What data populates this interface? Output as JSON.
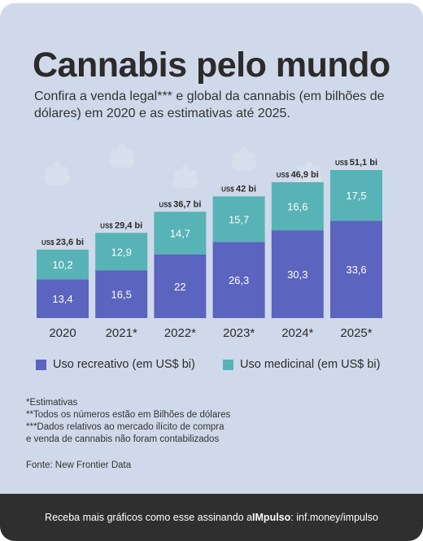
{
  "header": {
    "title": "Cannabis pelo mundo",
    "subtitle": "Confira a venda legal*** e global da cannabis (em bilhões de dólares) em 2020 e as estimativas até 2025."
  },
  "colors": {
    "background": "#cfd9ea",
    "recreational": "#5b64bf",
    "medicinal": "#57b3b6",
    "footer": "#2f2f2f"
  },
  "chart_data": {
    "type": "bar",
    "stacked": true,
    "categories": [
      "2020",
      "2021*",
      "2022*",
      "2023*",
      "2024*",
      "2025*"
    ],
    "series": [
      {
        "name": "Uso recreativo (em US$ bi)",
        "values": [
          13.4,
          16.5,
          22,
          26.3,
          30.3,
          33.6
        ],
        "labels": [
          "13,4",
          "16,5",
          "22",
          "26,3",
          "30,3",
          "33,6"
        ]
      },
      {
        "name": "Uso medicinal (em US$ bi)",
        "values": [
          10.2,
          12.9,
          14.7,
          15.7,
          16.6,
          17.5
        ],
        "labels": [
          "10,2",
          "12,9",
          "14,7",
          "15,7",
          "16,6",
          "17,5"
        ]
      }
    ],
    "totals": [
      23.6,
      29.4,
      36.7,
      42,
      46.9,
      51.1
    ],
    "total_prefix": "US$",
    "total_labels": [
      "23,6 bi",
      "29,4 bi",
      "36,7 bi",
      "42 bi",
      "46,9 bi",
      "51,1 bi"
    ],
    "ylim": [
      0,
      51.1
    ],
    "grid": false,
    "legend_position": "bottom"
  },
  "legend": {
    "recreational": "Uso recreativo (em US$ bi)",
    "medicinal": "Uso medicinal (em US$ bi)"
  },
  "notes": [
    "*Estimativas",
    "**Todos os números estão em Bilhões de dólares",
    "***Dados relativos ao mercado ilícito de compra",
    "e venda de cannabis não foram contabilizados"
  ],
  "source": "Fonte: New Frontier Data",
  "footer": {
    "prefix": "Receba mais gráficos como esse assinando a ",
    "brand": "IMpulso",
    "suffix": ": inf.money/impulso"
  }
}
